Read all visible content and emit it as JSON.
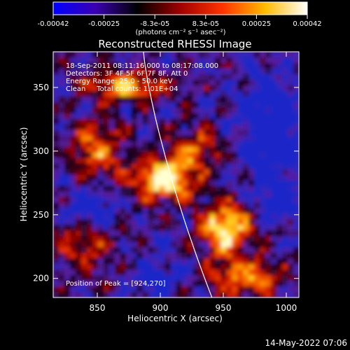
{
  "colorbar": {
    "ticks": [
      "-0.00042",
      "-0.00025",
      "-8.3e-05",
      "8.3e-05",
      "0.00025",
      "0.00042"
    ],
    "units": "(photons cm⁻² s⁻¹ asec⁻²)",
    "range": [
      -0.00042,
      0.00042
    ],
    "colors": [
      "#0000ff",
      "#3a00b0",
      "#000000",
      "#a00000",
      "#ff3300",
      "#ffbb00",
      "#ffffff"
    ]
  },
  "chart_data": {
    "type": "heatmap",
    "title": "Reconstructed RHESSI Image",
    "xlabel": "Heliocentric X (arcsec)",
    "ylabel": "Heliocentric Y (arcsec)",
    "xlim": [
      815,
      1010
    ],
    "ylim": [
      185,
      378
    ],
    "x_ticks": [
      "850",
      "900",
      "950",
      "1000"
    ],
    "y_ticks": [
      "200",
      "250",
      "300",
      "350"
    ],
    "x_tick_values": [
      850,
      900,
      950,
      1000
    ],
    "y_tick_values": [
      200,
      250,
      300,
      350
    ],
    "annotations": [
      "18-Sep-2011 08:11:16.000 to 08:17:08.000",
      "Detectors: 3F 4F 5F 6F 7F 8F, Att 0",
      "Energy Range: 25.0 - 50.0 keV",
      "Clean     Total counts: 1.01E+04"
    ],
    "peak_label": "Position of Peak = [924,270]",
    "peak": [
      924,
      270
    ],
    "limb_color": "#ffffff"
  },
  "footer": {
    "timestamp": "14-May-2022 07:06"
  }
}
